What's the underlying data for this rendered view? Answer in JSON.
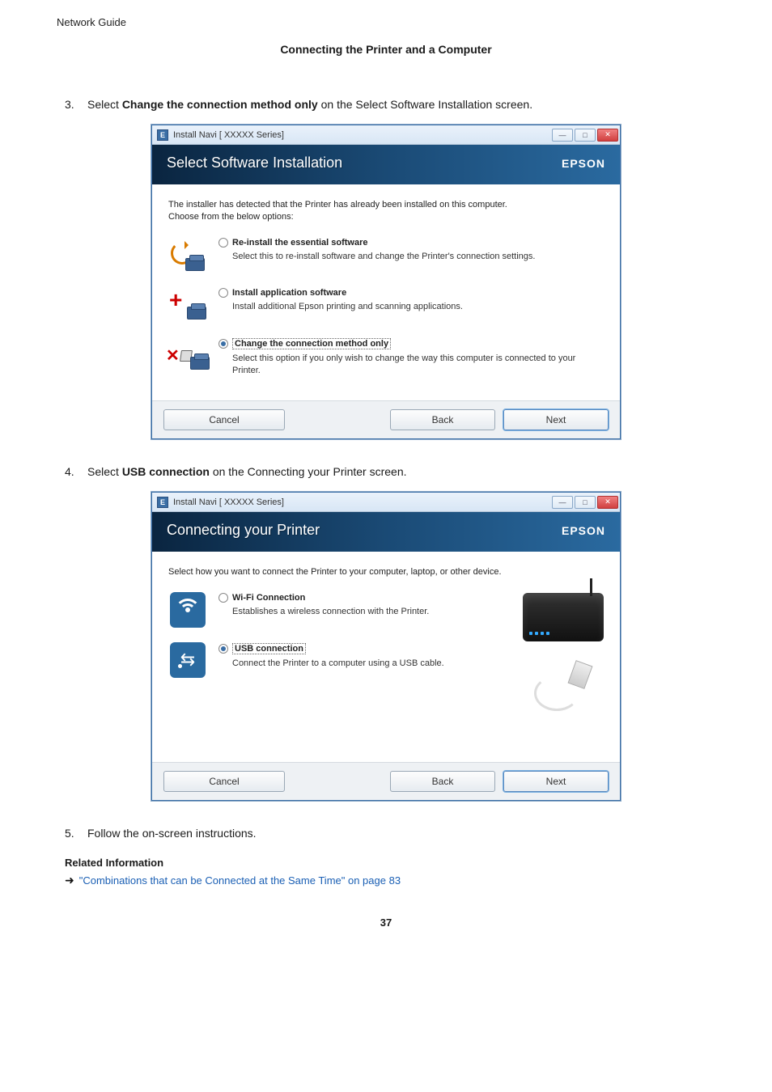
{
  "doc": {
    "header_left": "Network Guide",
    "subtitle": "Connecting the Printer and a Computer",
    "page_number": "37"
  },
  "steps": {
    "s3": {
      "num": "3.",
      "prefix": "Select ",
      "bold": "Change the connection method only",
      "suffix": " on the Select Software Installation screen."
    },
    "s4": {
      "num": "4.",
      "prefix": "Select ",
      "bold": "USB connection",
      "suffix": " on the Connecting your Printer screen."
    },
    "s5": {
      "num": "5.",
      "text": "Follow the on-screen instructions."
    }
  },
  "dialog1": {
    "window_title": "Install Navi [ XXXXX      Series]",
    "band_title": "Select Software Installation",
    "brand": "EPSON",
    "intro_line1": "The installer has detected that the Printer has already been installed on this computer.",
    "intro_line2": "Choose from the below options:",
    "opt1": {
      "title": "Re-install the essential software",
      "desc": "Select this to re-install software and change the Printer's connection settings."
    },
    "opt2": {
      "title": "Install application software",
      "desc": "Install additional Epson printing and scanning applications."
    },
    "opt3": {
      "title": "Change the connection method only",
      "desc": "Select this option if you only wish to change the way this computer is connected to your Printer."
    },
    "buttons": {
      "cancel": "Cancel",
      "back": "Back",
      "next": "Next"
    }
  },
  "dialog2": {
    "window_title": "Install Navi [  XXXXX     Series]",
    "band_title": "Connecting your Printer",
    "brand": "EPSON",
    "intro": "Select how you want to connect the Printer to your computer, laptop, or other device.",
    "opt1": {
      "title": "Wi-Fi Connection",
      "desc": "Establishes a wireless connection with the Printer."
    },
    "opt2": {
      "title": "USB connection",
      "desc": "Connect the Printer to a computer using a USB cable."
    },
    "buttons": {
      "cancel": "Cancel",
      "back": "Back",
      "next": "Next"
    }
  },
  "related": {
    "heading": "Related Information",
    "link_text": "\"Combinations that can be Connected at the Same Time\" on page 83"
  },
  "colors": {
    "band_gradient_start": "#0a2540",
    "band_gradient_mid": "#1a4a75",
    "band_gradient_end": "#2a6aa0",
    "link_color": "#1a5fb4",
    "icon_tile": "#2a6aa0"
  }
}
